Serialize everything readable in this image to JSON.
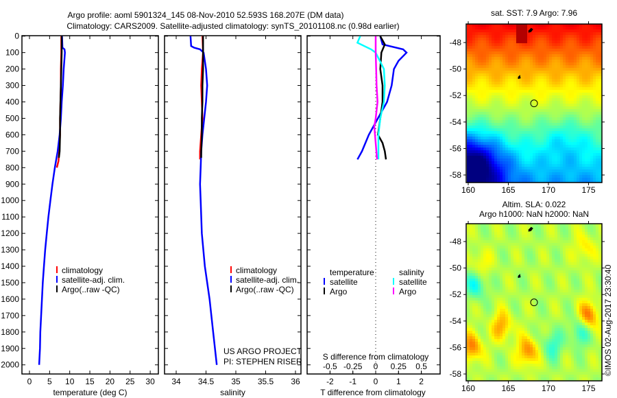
{
  "title": {
    "line1": "Argo profile: aoml 5901324_145 08-Nov-2010 52.593S 168.207E (DM data)",
    "line2": "Climatology: CARS2009. Satellite-adjusted climatology: synTS_20101108.nc (0.98d earlier)"
  },
  "depth_ticks": [
    "0",
    "100",
    "200",
    "300",
    "400",
    "500",
    "600",
    "700",
    "800",
    "900",
    "1000",
    "1100",
    "1200",
    "1300",
    "1400",
    "1500",
    "1600",
    "1700",
    "1800",
    "1900",
    "2000"
  ],
  "chart_data": [
    {
      "type": "line",
      "id": "temperature",
      "xlabel": "temperature (deg C)",
      "ylabel": "",
      "xlim": [
        -1.8,
        32
      ],
      "ylim": [
        2055,
        0
      ],
      "xticks": [
        "0",
        "5",
        "10",
        "15",
        "20",
        "25",
        "30"
      ],
      "xtick_values": [
        0,
        5,
        10,
        15,
        20,
        25,
        30
      ],
      "legend": [
        "climatology",
        "satellite-adj. clim.",
        "Argo(..raw -QC)"
      ],
      "series": [
        {
          "name": "climatology",
          "color": "#ff0000",
          "depth": [
            0,
            100,
            200,
            300,
            400,
            500,
            600,
            700,
            760,
            800
          ],
          "values": [
            7.9,
            7.9,
            7.8,
            7.8,
            7.7,
            7.6,
            7.6,
            7.4,
            7.2,
            6.8
          ]
        },
        {
          "name": "satellite-adj. clim.",
          "color": "#0000ff",
          "depth": [
            0,
            70,
            80,
            100,
            200,
            300,
            400,
            500,
            600,
            700,
            800,
            900,
            1000,
            1100,
            1200,
            1300,
            1400,
            1500,
            1600,
            1700,
            1800,
            1900,
            2000
          ],
          "values": [
            8.1,
            8.2,
            8.7,
            8.8,
            8.5,
            8.3,
            8.0,
            7.8,
            7.5,
            7.0,
            6.3,
            5.7,
            5.2,
            4.7,
            4.3,
            3.9,
            3.6,
            3.3,
            3.1,
            2.9,
            2.7,
            2.6,
            2.4
          ]
        },
        {
          "name": "Argo(..raw -QC)",
          "color": "#000000",
          "depth": [
            0,
            100,
            200,
            300,
            400,
            500,
            600,
            700,
            740
          ],
          "values": [
            8.0,
            8.0,
            7.9,
            7.8,
            7.7,
            7.6,
            7.6,
            7.5,
            7.3
          ]
        }
      ]
    },
    {
      "type": "line",
      "id": "salinity",
      "xlabel": "salinity",
      "xlim": [
        33.8,
        36.1
      ],
      "ylim": [
        2055,
        0
      ],
      "xticks": [
        "34",
        "34.5",
        "35",
        "35.5",
        "36"
      ],
      "xtick_values": [
        34,
        34.5,
        35,
        35.5,
        36
      ],
      "legend": [
        "climatology",
        "satellite-adj. clim.",
        "Argo(..raw -QC)"
      ],
      "annotation": [
        "US ARGO PROJECT",
        "PI: STEPHEN RISER"
      ],
      "series": [
        {
          "name": "climatology",
          "color": "#ff0000",
          "depth": [
            0,
            100,
            200,
            300,
            400,
            500,
            600,
            700,
            750
          ],
          "values": [
            34.44,
            34.45,
            34.43,
            34.42,
            34.43,
            34.44,
            34.42,
            34.4,
            34.4
          ]
        },
        {
          "name": "satellite-adj. clim.",
          "color": "#0000ff",
          "depth": [
            0,
            60,
            70,
            80,
            100,
            200,
            300,
            400,
            500,
            600,
            700,
            800,
            900,
            1000,
            1200,
            1400,
            1600,
            1800,
            2000
          ],
          "values": [
            34.24,
            34.25,
            34.3,
            34.4,
            34.46,
            34.5,
            34.52,
            34.5,
            34.47,
            34.44,
            34.42,
            34.41,
            34.4,
            34.41,
            34.43,
            34.48,
            34.56,
            34.62,
            34.68
          ]
        },
        {
          "name": "Argo(..raw -QC)",
          "color": "#000000",
          "depth": [
            0,
            100,
            200,
            300,
            400,
            500,
            600,
            700,
            740
          ],
          "values": [
            34.45,
            34.45,
            34.45,
            34.44,
            34.44,
            34.43,
            34.43,
            34.42,
            34.42
          ]
        }
      ]
    },
    {
      "type": "line",
      "id": "difference",
      "xlabel": "T difference from climatology",
      "xlabel2": "S difference from climatology",
      "xlim": [
        -3,
        2.8
      ],
      "ylim": [
        2055,
        0
      ],
      "xticks": [
        "-2",
        "-1",
        "0",
        "1",
        "2"
      ],
      "xtick_values": [
        -2,
        -1,
        0,
        1,
        2
      ],
      "xticks2": [
        "-0.5",
        "-0.25",
        "0",
        "0.25",
        "0.5"
      ],
      "xtick2_values": [
        -0.5,
        -0.25,
        0,
        0.25,
        0.5
      ],
      "legend_headers": [
        "temperature",
        "salinity"
      ],
      "legend": [
        "satellite",
        "Argo",
        "satellite",
        "Argo"
      ],
      "series": [
        {
          "name": "temperature satellite",
          "color": "#0000ff",
          "axis": "T",
          "depth": [
            0,
            50,
            80,
            100,
            150,
            200,
            300,
            400,
            500,
            600,
            700,
            750
          ],
          "values": [
            0.2,
            0.3,
            1.2,
            1.35,
            1.0,
            0.8,
            0.7,
            0.5,
            0.1,
            -0.3,
            -0.6,
            -0.8
          ]
        },
        {
          "name": "temperature Argo",
          "color": "#000000",
          "axis": "T",
          "depth": [
            0,
            50,
            100,
            200,
            300,
            400,
            500,
            600,
            650,
            700,
            750
          ],
          "values": [
            0.2,
            0.4,
            0.25,
            0.2,
            0.3,
            0.3,
            0.2,
            0.1,
            0.3,
            0.4,
            0.45
          ]
        },
        {
          "name": "salinity satellite",
          "color": "#00ffff",
          "axis": "S",
          "depth": [
            0,
            40,
            80,
            100,
            200,
            300,
            400,
            500,
            600,
            750
          ],
          "values": [
            -0.17,
            -0.2,
            -0.05,
            0.0,
            0.09,
            0.1,
            0.09,
            0.05,
            0.03,
            0.03
          ]
        },
        {
          "name": "salinity Argo",
          "color": "#ff00ff",
          "axis": "S",
          "depth": [
            0,
            100,
            200,
            300,
            400,
            500,
            550,
            650,
            750
          ],
          "values": [
            0.0,
            0.0,
            0.005,
            0.01,
            0.02,
            0.0,
            -0.015,
            0.0,
            0.015
          ]
        }
      ]
    }
  ],
  "maps": [
    {
      "id": "sst",
      "title": "sat. SST: 7.9 Argo: 7.96",
      "lon_ticks": [
        "160",
        "165",
        "170",
        "175"
      ],
      "lat_ticks": [
        "-48",
        "-50",
        "-52",
        "-54",
        "-56",
        "-58"
      ]
    },
    {
      "id": "sla",
      "title": "Altim. SLA: 0.022",
      "subtitle": "Argo h1000: NaN h2000: NaN",
      "lon_ticks": [
        "160",
        "165",
        "170",
        "175"
      ],
      "lat_ticks": [
        "-48",
        "-50",
        "-52",
        "-54",
        "-56",
        "-58"
      ]
    }
  ],
  "profile_location": {
    "lon": 168.207,
    "lat": -52.593
  },
  "credit": "©IMOS 02-Aug-2017 23:30:40"
}
